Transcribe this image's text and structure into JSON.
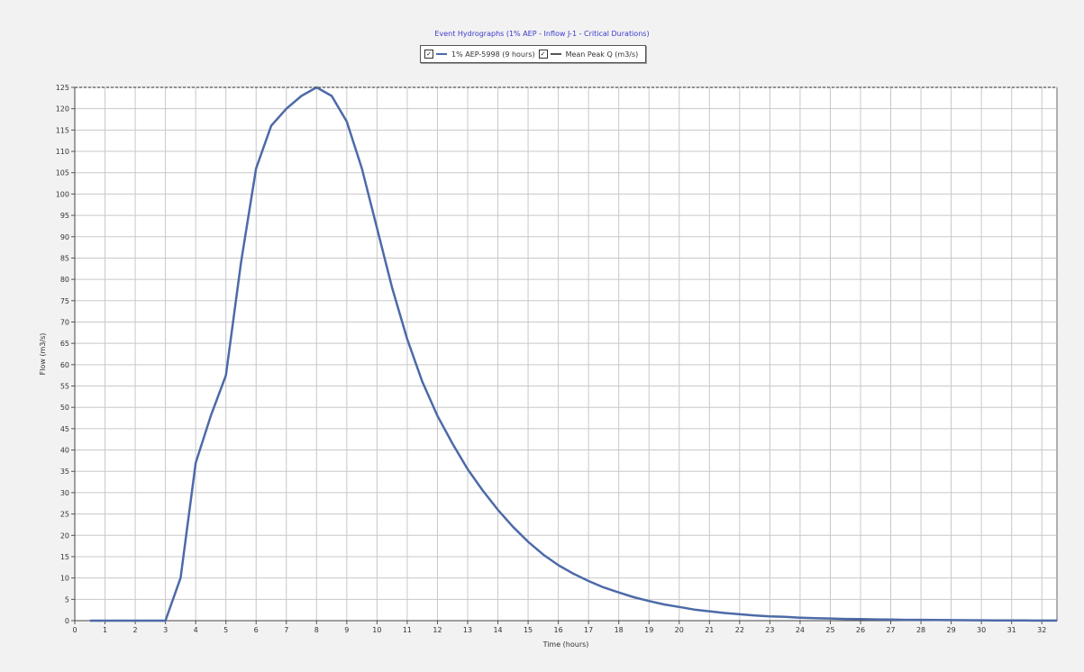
{
  "chart_data": {
    "type": "line",
    "title": "Event Hydrographs (1% AEP - Inflow J-1 - Critical Durations)",
    "xlabel": "Time (hours)",
    "ylabel": "Flow (m3/s)",
    "xlim": [
      0,
      32.5
    ],
    "ylim": [
      0,
      125
    ],
    "grid": true,
    "legend_position": "top-center",
    "x_ticks": [
      0,
      1,
      2,
      3,
      4,
      5,
      6,
      7,
      8,
      9,
      10,
      11,
      12,
      13,
      14,
      15,
      16,
      17,
      18,
      19,
      20,
      21,
      22,
      23,
      24,
      25,
      26,
      27,
      28,
      29,
      30,
      31,
      32
    ],
    "y_ticks": [
      0,
      5,
      10,
      15,
      20,
      25,
      30,
      35,
      40,
      45,
      50,
      55,
      60,
      65,
      70,
      75,
      80,
      85,
      90,
      95,
      100,
      105,
      110,
      115,
      120,
      125
    ],
    "series": [
      {
        "name": "1% AEP-5998 (9 hours)",
        "color": "#4d6aa8",
        "style": "solid",
        "x": [
          0.5,
          1,
          1.5,
          2,
          2.5,
          3,
          3.5,
          4,
          4.5,
          5,
          5.5,
          6,
          6.5,
          7,
          7.5,
          8,
          8.5,
          9,
          9.5,
          10,
          10.5,
          11,
          11.5,
          12,
          12.5,
          13,
          13.5,
          14,
          14.5,
          15,
          15.5,
          16,
          16.5,
          17,
          17.5,
          18,
          18.5,
          19,
          19.5,
          20,
          20.5,
          21,
          21.5,
          22,
          22.5,
          23,
          23.5,
          24,
          24.5,
          25,
          25.5,
          26,
          26.5,
          27,
          27.5,
          28,
          28.5,
          29,
          29.5,
          30,
          30.5,
          31,
          31.5,
          32,
          32.5
        ],
        "values": [
          0,
          0,
          0,
          0,
          0,
          0,
          10,
          37,
          48,
          57.5,
          84,
          106,
          116,
          120,
          123,
          125,
          123,
          117,
          106,
          92,
          78,
          66,
          56,
          48,
          41.5,
          35.5,
          30.5,
          26,
          22,
          18.5,
          15.5,
          13,
          11,
          9.3,
          7.8,
          6.6,
          5.5,
          4.6,
          3.8,
          3.2,
          2.6,
          2.2,
          1.8,
          1.5,
          1.2,
          1.0,
          0.9,
          0.7,
          0.6,
          0.5,
          0.4,
          0.35,
          0.3,
          0.25,
          0.2,
          0.18,
          0.15,
          0.12,
          0.1,
          0.08,
          0.07,
          0.05,
          0.04,
          0.03,
          0.02
        ]
      },
      {
        "name": "Mean Peak Q (m3/s)",
        "color": "#555555",
        "style": "dashed",
        "y_constant": 125
      }
    ]
  },
  "legend": {
    "check": "✓",
    "items": [
      {
        "label": "1% AEP-5998 (9 hours)"
      },
      {
        "label": "Mean Peak Q (m3/s)"
      }
    ]
  }
}
